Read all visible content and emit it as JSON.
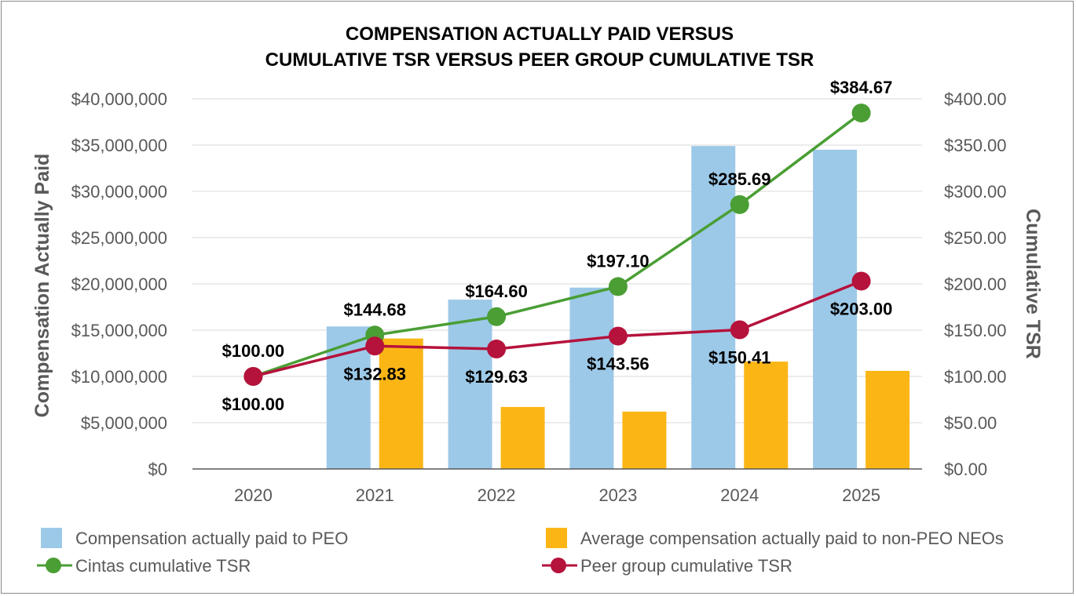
{
  "chart_data": {
    "type": "bar",
    "title_lines": [
      "COMPENSATION ACTUALLY PAID VERSUS",
      "CUMULATIVE TSR VERSUS PEER GROUP CUMULATIVE TSR"
    ],
    "ylabel_left": "Compensation Actually Paid",
    "ylabel_right": "Cumulative TSR",
    "categories": [
      "2020",
      "2021",
      "2022",
      "2023",
      "2024",
      "2025"
    ],
    "ylim_left": [
      0,
      40000000
    ],
    "ylim_right": [
      0,
      400
    ],
    "left_ticks": [
      "$0",
      "$5,000,000",
      "$10,000,000",
      "$15,000,000",
      "$20,000,000",
      "$25,000,000",
      "$30,000,000",
      "$35,000,000",
      "$40,000,000"
    ],
    "right_ticks": [
      "$0.00",
      "$50.00",
      "$100.00",
      "$150.00",
      "$200.00",
      "$250.00",
      "$300.00",
      "$350.00",
      "$400.00"
    ],
    "bar_series": [
      {
        "name": "Compensation actually paid to PEO",
        "color": "#9dc9e8",
        "axis": "left",
        "values": [
          null,
          15400000,
          18300000,
          19600000,
          34900000,
          34500000
        ]
      },
      {
        "name": "Average compensation actually paid to non-PEO NEOs",
        "color": "#fbb616",
        "axis": "left",
        "values": [
          null,
          14100000,
          6700000,
          6200000,
          11600000,
          10600000
        ]
      }
    ],
    "line_series": [
      {
        "name": "Cintas cumulative TSR",
        "color": "#4a9e34",
        "axis": "right",
        "values": [
          100.0,
          144.68,
          164.6,
          197.1,
          285.69,
          384.67
        ],
        "labels": [
          "$100.00",
          "$144.68",
          "$164.60",
          "$197.10",
          "$285.69",
          "$384.67"
        ]
      },
      {
        "name": "Peer group cumulative TSR",
        "color": "#b5123c",
        "axis": "right",
        "values": [
          100.0,
          132.83,
          129.63,
          143.56,
          150.41,
          203.0
        ],
        "labels": [
          "$100.00",
          "$132.83",
          "$129.63",
          "$143.56",
          "$150.41",
          "$203.00"
        ]
      }
    ],
    "grid": true,
    "legend_position": "bottom"
  }
}
